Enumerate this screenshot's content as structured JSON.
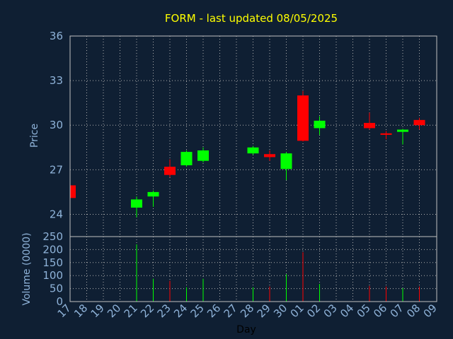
{
  "chart_data": [
    {
      "type": "candlestick",
      "title": "FORM - last updated 08/05/2025",
      "ylabel": "Price",
      "ylim": [
        22.5,
        36
      ],
      "yticks": [
        24,
        27,
        30,
        33,
        36
      ],
      "grid": true,
      "up_color": "#00ff00",
      "down_color": "#ff0000",
      "x_labels": [
        "17",
        "18",
        "19",
        "20",
        "21",
        "22",
        "23",
        "24",
        "25",
        "26",
        "27",
        "28",
        "29",
        "30",
        "01",
        "02",
        "03",
        "04",
        "05",
        "06",
        "07",
        "08",
        "09"
      ],
      "candles": [
        {
          "x": "17",
          "open": 25.95,
          "high": 25.95,
          "low": 25.1,
          "close": 25.1
        },
        {
          "x": "21",
          "open": 24.45,
          "high": 25.2,
          "low": 23.8,
          "close": 25.0
        },
        {
          "x": "22",
          "open": 25.2,
          "high": 25.6,
          "low": 24.5,
          "close": 25.5
        },
        {
          "x": "23",
          "open": 27.2,
          "high": 27.7,
          "low": 26.5,
          "close": 26.65
        },
        {
          "x": "24",
          "open": 27.3,
          "high": 28.3,
          "low": 27.2,
          "close": 28.2
        },
        {
          "x": "25",
          "open": 27.6,
          "high": 28.5,
          "low": 27.5,
          "close": 28.3
        },
        {
          "x": "28",
          "open": 28.1,
          "high": 28.6,
          "low": 28.0,
          "close": 28.5
        },
        {
          "x": "29",
          "open": 28.05,
          "high": 28.3,
          "low": 27.6,
          "close": 27.85
        },
        {
          "x": "30",
          "open": 27.05,
          "high": 28.2,
          "low": 26.3,
          "close": 28.1
        },
        {
          "x": "01",
          "open": 32.0,
          "high": 32.3,
          "low": 28.9,
          "close": 28.95
        },
        {
          "x": "02",
          "open": 29.8,
          "high": 30.6,
          "low": 29.35,
          "close": 30.3
        },
        {
          "x": "05",
          "open": 30.15,
          "high": 30.85,
          "low": 29.7,
          "close": 29.8
        },
        {
          "x": "06",
          "open": 29.45,
          "high": 29.6,
          "low": 29.05,
          "close": 29.35
        },
        {
          "x": "07",
          "open": 29.55,
          "high": 29.75,
          "low": 28.7,
          "close": 29.7
        },
        {
          "x": "08",
          "open": 30.35,
          "high": 30.5,
          "low": 29.7,
          "close": 30.0
        }
      ]
    },
    {
      "type": "bar",
      "ylabel": "Volume (0000)",
      "xlabel": "Day",
      "ylim": [
        0,
        250
      ],
      "yticks": [
        0,
        50,
        100,
        150,
        200,
        250
      ],
      "grid": true,
      "x_labels": [
        "17",
        "18",
        "19",
        "20",
        "21",
        "22",
        "23",
        "24",
        "25",
        "26",
        "27",
        "28",
        "29",
        "30",
        "01",
        "02",
        "03",
        "04",
        "05",
        "06",
        "07",
        "08",
        "09"
      ],
      "bars": [
        {
          "x": "21",
          "value": 220,
          "dir": "up"
        },
        {
          "x": "22",
          "value": 88,
          "dir": "up"
        },
        {
          "x": "23",
          "value": 80,
          "dir": "down"
        },
        {
          "x": "24",
          "value": 55,
          "dir": "up"
        },
        {
          "x": "25",
          "value": 88,
          "dir": "up"
        },
        {
          "x": "28",
          "value": 55,
          "dir": "up"
        },
        {
          "x": "29",
          "value": 58,
          "dir": "down"
        },
        {
          "x": "30",
          "value": 105,
          "dir": "up"
        },
        {
          "x": "01",
          "value": 190,
          "dir": "down"
        },
        {
          "x": "02",
          "value": 68,
          "dir": "up"
        },
        {
          "x": "05",
          "value": 60,
          "dir": "down"
        },
        {
          "x": "06",
          "value": 58,
          "dir": "down"
        },
        {
          "x": "07",
          "value": 52,
          "dir": "up"
        },
        {
          "x": "08",
          "value": 58,
          "dir": "down"
        }
      ]
    }
  ]
}
